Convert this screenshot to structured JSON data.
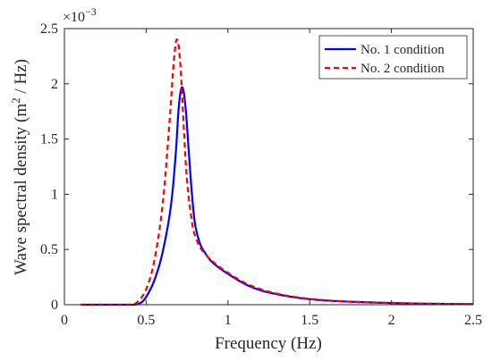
{
  "chart_data": {
    "type": "line",
    "xlabel": "Frequency (Hz)",
    "ylabel_main": "Wave spectral density (m",
    "ylabel_sup": "2",
    "ylabel_tail": " / Hz)",
    "y_multiplier": "×10",
    "y_multiplier_exp": "−3",
    "xlim": [
      0,
      2.5
    ],
    "ylim": [
      0,
      0.0025
    ],
    "x_ticks": [
      0,
      0.5,
      1,
      1.5,
      2,
      2.5
    ],
    "x_tick_labels": [
      "0",
      "0.5",
      "1",
      "1.5",
      "2",
      "2.5"
    ],
    "y_ticks": [
      0,
      0.0005,
      0.001,
      0.0015,
      0.002,
      0.0025
    ],
    "y_tick_labels": [
      "0",
      "0.5",
      "1",
      "1.5",
      "2",
      "2.5"
    ],
    "grid": false,
    "legend_position": "top-right",
    "series": [
      {
        "name": "No. 1 condition",
        "color": "#0000ff",
        "dash": "solid",
        "x": [
          0.1,
          0.4,
          0.44,
          0.47,
          0.5,
          0.55,
          0.6,
          0.65,
          0.68,
          0.7,
          0.72,
          0.74,
          0.76,
          0.78,
          0.8,
          0.83,
          0.86,
          0.9,
          0.95,
          1.0,
          1.1,
          1.2,
          1.3,
          1.4,
          1.5,
          1.6,
          1.7,
          1.8,
          1.9,
          2.0,
          2.2,
          2.5
        ],
        "y": [
          0,
          0,
          3e-06,
          2e-05,
          7e-05,
          0.00022,
          0.00047,
          0.00088,
          0.00135,
          0.0018,
          0.00197,
          0.0018,
          0.0014,
          0.001,
          0.00072,
          0.00055,
          0.00047,
          0.00039,
          0.00033,
          0.00028,
          0.00019,
          0.00013,
          9.5e-05,
          6.8e-05,
          5e-05,
          3.8e-05,
          3e-05,
          2.4e-05,
          1.9e-05,
          1.5e-05,
          9e-06,
          5e-06
        ]
      },
      {
        "name": "No. 2 condition",
        "color": "#ff0000",
        "dash": "dashed",
        "x": [
          0.1,
          0.38,
          0.42,
          0.45,
          0.5,
          0.55,
          0.6,
          0.64,
          0.67,
          0.69,
          0.71,
          0.73,
          0.75,
          0.78,
          0.8,
          0.83,
          0.86,
          0.9,
          0.95,
          1.0,
          1.1,
          1.2,
          1.3,
          1.4,
          1.5,
          1.6,
          1.7,
          1.8,
          1.9,
          2.0,
          2.2,
          2.5
        ],
        "y": [
          0,
          0,
          5e-06,
          3e-05,
          0.00014,
          0.0004,
          0.0009,
          0.0016,
          0.00222,
          0.0024,
          0.00215,
          0.0016,
          0.00112,
          0.00075,
          0.00062,
          0.00052,
          0.00046,
          0.0004,
          0.00034,
          0.00029,
          0.0002,
          0.00014,
          0.0001,
          7.2e-05,
          5.3e-05,
          4e-05,
          3.1e-05,
          2.5e-05,
          2e-05,
          1.6e-05,
          1e-05,
          6e-06
        ]
      }
    ]
  }
}
